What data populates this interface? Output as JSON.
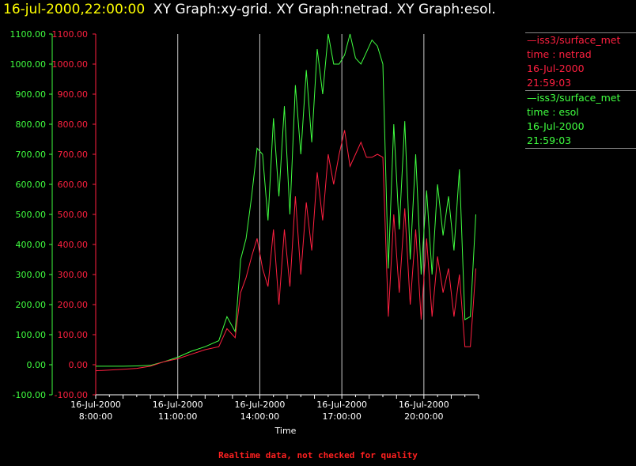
{
  "header": {
    "timestamp": "16-jul-2000,22:00:00",
    "graphs_text": "XY Graph:xy-grid.  XY Graph:netrad.  XY Graph:esol."
  },
  "legend": [
    {
      "line1": "—iss3/surface_met",
      "line2": "time : netrad",
      "line3": "16-Jul-2000",
      "line4": "21:59:03",
      "color": "#ff2040"
    },
    {
      "line1": "—iss3/surface_met",
      "line2": "time : esol",
      "line3": "16-Jul-2000",
      "line4": "21:59:03",
      "color": "#40ff40"
    }
  ],
  "footer": "Realtime data, not checked for quality",
  "chart_data": {
    "type": "line",
    "xlabel": "Time",
    "x_ticks": [
      {
        "date": "16-Jul-2000",
        "time": "8:00:00",
        "hour": 8
      },
      {
        "date": "16-Jul-2000",
        "time": "11:00:00",
        "hour": 11
      },
      {
        "date": "16-Jul-2000",
        "time": "14:00:00",
        "hour": 14
      },
      {
        "date": "16-Jul-2000",
        "time": "17:00:00",
        "hour": 17
      },
      {
        "date": "16-Jul-2000",
        "time": "20:00:00",
        "hour": 20
      }
    ],
    "xlim": [
      8,
      22
    ],
    "ylim": [
      -100,
      1100
    ],
    "y_ticks": [
      "-100.00",
      "0.00",
      "100.00",
      "200.00",
      "300.00",
      "400.00",
      "500.00",
      "600.00",
      "700.00",
      "800.00",
      "900.00",
      "1000.00",
      "1100.00"
    ],
    "y_tick_values": [
      -100,
      0,
      100,
      200,
      300,
      400,
      500,
      600,
      700,
      800,
      900,
      1000,
      1100
    ],
    "grid": "vertical",
    "legend_position": "right",
    "series": [
      {
        "name": "time : esol",
        "color": "#40ff40",
        "x": [
          8.0,
          8.5,
          9.0,
          9.5,
          10.0,
          10.5,
          11.0,
          11.5,
          12.0,
          12.5,
          12.8,
          13.1,
          13.3,
          13.5,
          13.7,
          13.9,
          14.1,
          14.3,
          14.5,
          14.7,
          14.9,
          15.1,
          15.3,
          15.5,
          15.7,
          15.9,
          16.1,
          16.3,
          16.5,
          16.7,
          16.9,
          17.1,
          17.3,
          17.5,
          17.7,
          17.9,
          18.1,
          18.3,
          18.5,
          18.7,
          18.9,
          19.1,
          19.3,
          19.5,
          19.7,
          19.9,
          20.1,
          20.3,
          20.5,
          20.7,
          20.9,
          21.1,
          21.3,
          21.5,
          21.7,
          21.9
        ],
        "y": [
          -5,
          -5,
          -5,
          -4,
          -2,
          10,
          25,
          45,
          60,
          80,
          160,
          110,
          350,
          420,
          560,
          720,
          700,
          480,
          820,
          560,
          860,
          500,
          930,
          700,
          980,
          740,
          1050,
          900,
          1100,
          1000,
          1000,
          1030,
          1100,
          1020,
          1000,
          1040,
          1080,
          1060,
          1000,
          320,
          800,
          450,
          810,
          350,
          700,
          300,
          580,
          300,
          600,
          430,
          560,
          380,
          650,
          150,
          160,
          500
        ]
      },
      {
        "name": "time : netrad",
        "color": "#ff2040",
        "x": [
          8.0,
          8.5,
          9.0,
          9.5,
          10.0,
          10.5,
          11.0,
          11.5,
          12.0,
          12.5,
          12.8,
          13.1,
          13.3,
          13.5,
          13.7,
          13.9,
          14.1,
          14.3,
          14.5,
          14.7,
          14.9,
          15.1,
          15.3,
          15.5,
          15.7,
          15.9,
          16.1,
          16.3,
          16.5,
          16.7,
          16.9,
          17.1,
          17.3,
          17.5,
          17.7,
          17.9,
          18.1,
          18.3,
          18.5,
          18.7,
          18.9,
          19.1,
          19.3,
          19.5,
          19.7,
          19.9,
          20.1,
          20.3,
          20.5,
          20.7,
          20.9,
          21.1,
          21.3,
          21.5,
          21.7,
          21.9
        ],
        "y": [
          -20,
          -18,
          -15,
          -12,
          -5,
          10,
          20,
          35,
          50,
          60,
          120,
          90,
          240,
          290,
          360,
          420,
          320,
          260,
          450,
          200,
          450,
          260,
          560,
          300,
          540,
          380,
          640,
          480,
          700,
          600,
          700,
          780,
          660,
          700,
          740,
          690,
          690,
          700,
          690,
          160,
          500,
          240,
          520,
          200,
          450,
          150,
          420,
          160,
          360,
          240,
          320,
          160,
          300,
          60,
          60,
          320
        ]
      }
    ]
  }
}
